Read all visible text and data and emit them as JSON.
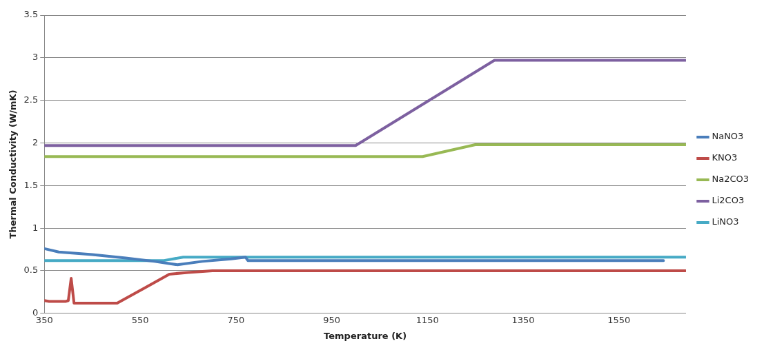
{
  "chart_data": {
    "type": "line",
    "xlabel": "Temperature (K)",
    "ylabel": "Thermal Conductivity (W/mK)",
    "xlim": [
      350,
      1690
    ],
    "xticks": [
      350,
      550,
      750,
      950,
      1150,
      1350,
      1550
    ],
    "ylim": [
      0,
      3.5
    ],
    "yticks": [
      0,
      0.5,
      1,
      1.5,
      2,
      2.5,
      3,
      3.5
    ],
    "grid": "y",
    "legend": "right",
    "marker": "none",
    "line_style": "solid",
    "series": [
      {
        "name": "NaNO3",
        "color": "#4a7ebb",
        "x": [
          350,
          380,
          450,
          520,
          580,
          628,
          680,
          740,
          770,
          775,
          1643
        ],
        "values": [
          0.76,
          0.72,
          0.69,
          0.65,
          0.61,
          0.57,
          0.61,
          0.64,
          0.66,
          0.62,
          0.62
        ]
      },
      {
        "name": "KNO3",
        "color": "#be4b48",
        "x": [
          350,
          360,
          395,
          400,
          406,
          412,
          420,
          502,
          560,
          611,
          650,
          701,
          1690
        ],
        "values": [
          0.15,
          0.14,
          0.14,
          0.15,
          0.41,
          0.12,
          0.12,
          0.12,
          0.3,
          0.46,
          0.48,
          0.5,
          0.5
        ]
      },
      {
        "name": "Na2CO3",
        "color": "#98b954",
        "x": [
          350,
          1140,
          1250,
          1690
        ],
        "values": [
          1.84,
          1.84,
          1.98,
          1.98
        ]
      },
      {
        "name": "Li2CO3",
        "color": "#7d60a0",
        "x": [
          350,
          1000,
          1290,
          1690
        ],
        "values": [
          1.97,
          1.97,
          2.97,
          2.97
        ]
      },
      {
        "name": "LiNO3",
        "color": "#46aac5",
        "x": [
          350,
          600,
          640,
          1690
        ],
        "values": [
          0.62,
          0.62,
          0.66,
          0.66
        ]
      }
    ]
  }
}
